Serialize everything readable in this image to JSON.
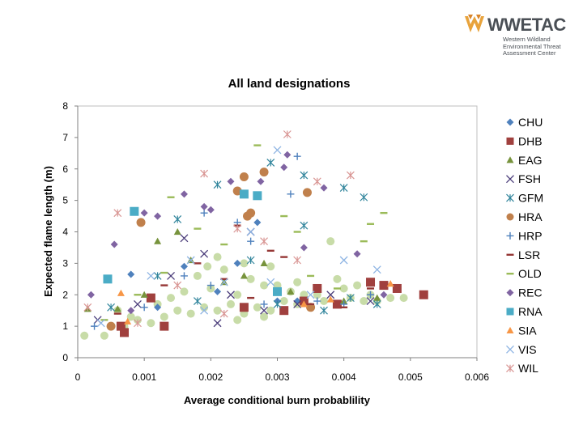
{
  "logo": {
    "name": "WWETAC",
    "subtitle_lines": [
      "Western Wildland",
      "Environmental Threat",
      "Assessment Center"
    ]
  },
  "chart_data": {
    "type": "scatter",
    "title": "All land designations",
    "xlabel": "Average conditional burn probablility",
    "ylabel": "Expected flame length (m)",
    "xlim": [
      0,
      0.006
    ],
    "ylim": [
      0,
      8
    ],
    "x_ticks": [
      "0",
      "0.001",
      "0.002",
      "0.003",
      "0.004",
      "0.005",
      "0.006"
    ],
    "y_ticks": [
      "0",
      "1",
      "2",
      "3",
      "4",
      "5",
      "6",
      "7",
      "8"
    ],
    "grid": false,
    "legend_position": "right",
    "series": [
      {
        "name": "CHU",
        "marker": "diamond",
        "color": "#4f81bd",
        "x": [
          0.0008,
          0.0024,
          0.0027,
          0.0016,
          0.003,
          0.0012,
          0.0033,
          0.0021
        ],
        "y": [
          2.65,
          3.0,
          4.3,
          2.9,
          1.8,
          1.6,
          1.8,
          2.1
        ]
      },
      {
        "name": "DHB",
        "marker": "square",
        "color": "#a0403e",
        "x": [
          0.00065,
          0.0007,
          0.0011,
          0.0013,
          0.0034,
          0.0036,
          0.0044,
          0.0046,
          0.0048,
          0.0052,
          0.0039,
          0.0025,
          0.0031
        ],
        "y": [
          1.0,
          0.8,
          1.9,
          1.0,
          1.8,
          2.2,
          2.4,
          2.3,
          2.2,
          2.0,
          1.7,
          1.6,
          1.5
        ]
      },
      {
        "name": "EAG",
        "marker": "triangle",
        "color": "#77933c",
        "x": [
          0.00015,
          0.0006,
          0.0012,
          0.0015,
          0.0017,
          0.0025,
          0.0028,
          0.0032,
          0.004,
          0.0045,
          0.0022,
          0.001
        ],
        "y": [
          1.55,
          1.55,
          3.7,
          4.0,
          3.1,
          2.6,
          3.0,
          2.1,
          1.8,
          1.9,
          2.4,
          2.0
        ]
      },
      {
        "name": "FSH",
        "marker": "x",
        "color": "#4a3c7a",
        "x": [
          0.0003,
          0.0009,
          0.0014,
          0.0019,
          0.0023,
          0.0028,
          0.0033,
          0.0038,
          0.0044,
          0.0021,
          0.0016,
          0.0026
        ],
        "y": [
          1.2,
          1.7,
          2.6,
          3.3,
          2.0,
          1.5,
          1.7,
          2.0,
          1.8,
          1.1,
          3.8,
          4.0
        ]
      },
      {
        "name": "GFM",
        "marker": "asterisk",
        "color": "#31859c",
        "x": [
          0.0005,
          0.0012,
          0.0018,
          0.0021,
          0.0026,
          0.003,
          0.0034,
          0.0037,
          0.0041,
          0.0045,
          0.0015,
          0.0029,
          0.0034,
          0.004,
          0.0043
        ],
        "y": [
          1.6,
          2.6,
          1.8,
          5.5,
          3.1,
          1.7,
          4.2,
          1.5,
          1.9,
          1.7,
          4.4,
          6.2,
          5.8,
          5.4,
          5.1
        ]
      },
      {
        "name": "HRA",
        "marker": "circle",
        "color": "#c0804c",
        "x": [
          0.0005,
          0.00095,
          0.0024,
          0.0025,
          0.00255,
          0.0028,
          0.00345,
          0.0035,
          0.0026
        ],
        "y": [
          1.0,
          4.3,
          5.3,
          5.75,
          4.5,
          5.9,
          5.25,
          1.6,
          4.6
        ]
      },
      {
        "name": "HRP",
        "marker": "plus",
        "color": "#4f81bd",
        "x": [
          0.00025,
          0.001,
          0.0016,
          0.002,
          0.0024,
          0.0028,
          0.0032,
          0.0036,
          0.004,
          0.0044,
          0.0019,
          0.0033,
          0.0026
        ],
        "y": [
          1.0,
          1.6,
          2.6,
          2.3,
          4.3,
          1.7,
          5.2,
          1.8,
          1.7,
          2.0,
          4.6,
          6.4,
          3.7
        ]
      },
      {
        "name": "LSR",
        "marker": "dash",
        "color": "#953735",
        "x": [
          0.0006,
          0.0013,
          0.0018,
          0.0022,
          0.0026,
          0.0031,
          0.0035,
          0.004,
          0.0044,
          0.0024,
          0.0029
        ],
        "y": [
          1.4,
          2.3,
          3.0,
          2.5,
          1.9,
          3.2,
          1.7,
          1.6,
          2.2,
          4.2,
          3.4
        ]
      },
      {
        "name": "OLD",
        "marker": "dash",
        "color": "#9bbb59",
        "x": [
          0.0004,
          0.0009,
          0.0014,
          0.0018,
          0.0022,
          0.0027,
          0.0031,
          0.0035,
          0.0039,
          0.0043,
          0.0046,
          0.0044,
          0.0013,
          0.0033
        ],
        "y": [
          1.2,
          2.0,
          5.1,
          4.1,
          3.6,
          6.75,
          4.5,
          2.6,
          2.2,
          3.7,
          4.6,
          4.25,
          2.7,
          4.0
        ]
      },
      {
        "name": "REC",
        "marker": "diamond",
        "color": "#8064a2",
        "x": [
          0.0002,
          0.00055,
          0.0008,
          0.0012,
          0.0016,
          0.0019,
          0.0023,
          0.00275,
          0.0031,
          0.00315,
          0.0034,
          0.0037,
          0.0042,
          0.0046,
          0.002,
          0.001
        ],
        "y": [
          2.0,
          3.6,
          1.5,
          4.5,
          5.2,
          4.8,
          5.6,
          5.6,
          6.05,
          6.45,
          3.5,
          5.4,
          3.3,
          2.0,
          4.7,
          4.6
        ]
      },
      {
        "name": "RNA",
        "marker": "square",
        "color": "#4bacc6",
        "x": [
          0.00045,
          0.00085,
          0.0025,
          0.0027,
          0.003
        ],
        "y": [
          2.5,
          4.65,
          5.2,
          5.15,
          2.1
        ]
      },
      {
        "name": "SIA",
        "marker": "triangle",
        "color": "#f79646",
        "x": [
          0.00065,
          0.00075,
          0.0034,
          0.0038,
          0.0047
        ],
        "y": [
          2.05,
          1.15,
          1.7,
          1.85,
          2.35
        ]
      },
      {
        "name": "VIS",
        "marker": "x",
        "color": "#8eb4e3",
        "x": [
          0.00035,
          0.0011,
          0.0017,
          0.0022,
          0.0026,
          0.003,
          0.0035,
          0.004,
          0.0045,
          0.0029,
          0.0019
        ],
        "y": [
          1.1,
          2.6,
          3.1,
          2.4,
          4.0,
          6.6,
          2.0,
          3.1,
          2.8,
          2.4,
          1.5
        ]
      },
      {
        "name": "WIL",
        "marker": "asterisk",
        "color": "#d99694",
        "x": [
          0.00015,
          0.0006,
          0.0009,
          0.0015,
          0.0019,
          0.0024,
          0.0028,
          0.00315,
          0.0036,
          0.0041,
          0.0033,
          0.0022
        ],
        "y": [
          1.6,
          4.6,
          1.1,
          2.3,
          5.85,
          4.1,
          3.7,
          7.1,
          5.6,
          5.8,
          3.1,
          1.4
        ]
      }
    ],
    "cloud": {
      "color": "#c8dca8",
      "x": [
        0.0001,
        0.0004,
        0.0007,
        0.0009,
        0.0011,
        0.0013,
        0.0015,
        0.0017,
        0.0019,
        0.0021,
        0.0023,
        0.0025,
        0.0027,
        0.0029,
        0.0031,
        0.0033,
        0.0035,
        0.0037,
        0.0039,
        0.0041,
        0.0043,
        0.0045,
        0.0047,
        0.0049,
        0.0016,
        0.002,
        0.0024,
        0.0028,
        0.0032,
        0.0036,
        0.004,
        0.0012,
        0.0018,
        0.0022,
        0.0026,
        0.003,
        0.0034,
        0.0038,
        0.0042,
        0.0008,
        0.0014,
        0.0021,
        0.0025,
        0.0029,
        0.0033,
        0.0039,
        0.0044,
        0.00195,
        0.0006,
        0.0024,
        0.0028
      ],
      "y": [
        0.7,
        0.7,
        1.0,
        1.2,
        1.1,
        1.3,
        1.5,
        1.4,
        1.6,
        1.5,
        1.7,
        1.4,
        1.6,
        1.5,
        1.8,
        1.7,
        1.6,
        1.8,
        1.7,
        1.9,
        1.8,
        1.8,
        1.9,
        1.9,
        2.1,
        2.2,
        2.0,
        2.3,
        2.1,
        2.0,
        2.2,
        1.7,
        2.6,
        2.8,
        2.5,
        2.3,
        2.0,
        3.7,
        2.3,
        1.3,
        1.9,
        3.2,
        3.0,
        2.9,
        2.4,
        2.5,
        2.0,
        2.9,
        1.5,
        1.2,
        1.3
      ]
    }
  }
}
